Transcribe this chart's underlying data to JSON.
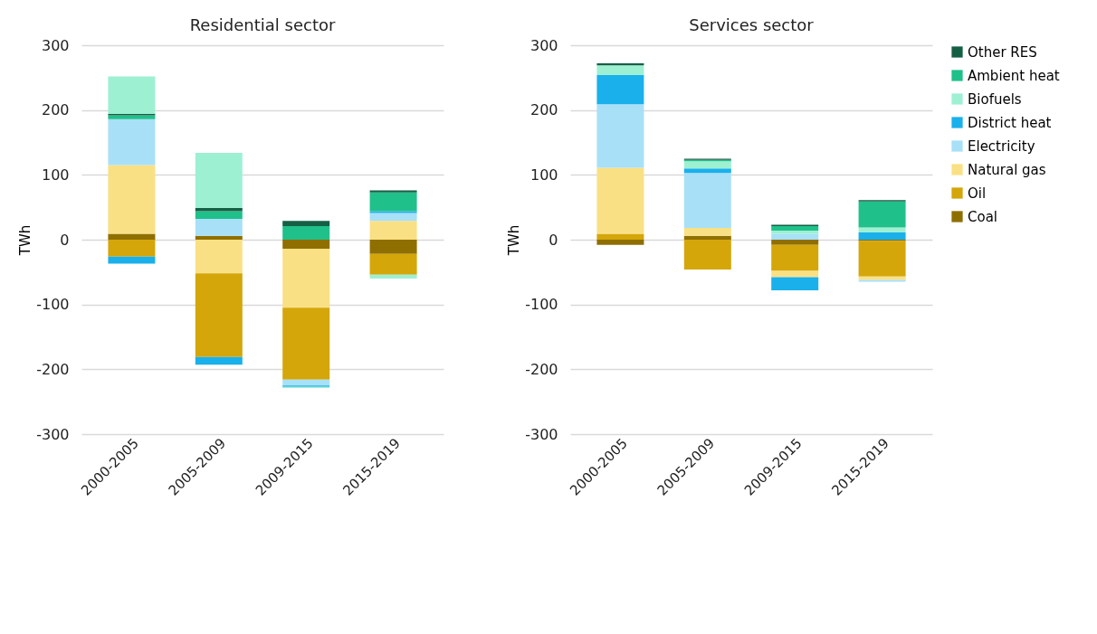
{
  "chart_data": [
    {
      "type": "bar",
      "title": "Residential sector",
      "ylabel": "TWh",
      "stacked": true,
      "categories": [
        "2000-2005",
        "2005-2009",
        "2009-2015",
        "2015-2019"
      ],
      "ylim": [
        -300,
        300
      ],
      "yticks": [
        -300,
        -200,
        -100,
        0,
        100,
        200,
        300
      ],
      "grid": "y",
      "legend": false,
      "series": [
        {
          "color": "#8f6f00",
          "values": [
            9,
            6,
            -14,
            -22
          ]
        },
        {
          "color": "#fae084",
          "values": [
            106,
            -52,
            -91,
            29
          ]
        },
        {
          "color": "#d4a60a",
          "values": [
            -26,
            -129,
            -111,
            -32
          ]
        },
        {
          "color": "#a8e0f8",
          "values": [
            71,
            26,
            -9,
            12
          ]
        },
        {
          "color": "#1ab0eb",
          "values": [
            -11,
            -12,
            -2,
            3
          ]
        },
        {
          "color": "#20c08a",
          "values": [
            6,
            12,
            21,
            29
          ]
        },
        {
          "color": "#155f45",
          "values": [
            2,
            5,
            8,
            3
          ]
        },
        {
          "color": "#9ef0d3",
          "values": [
            58,
            85,
            -2,
            -6
          ]
        }
      ]
    },
    {
      "type": "bar",
      "title": "Services sector",
      "ylabel": "TWh",
      "stacked": true,
      "categories": [
        "2000-2005",
        "2005-2009",
        "2009-2015",
        "2015-2019"
      ],
      "ylim": [
        -300,
        300
      ],
      "yticks": [
        -300,
        -200,
        -100,
        0,
        100,
        200,
        300
      ],
      "grid": "y",
      "legend": "right",
      "series": [
        {
          "name": "Coal",
          "color": "#8f6f00",
          "values": [
            -8,
            6,
            -8,
            -2
          ]
        },
        {
          "name": "Oil",
          "color": "#d4a60a",
          "values": [
            9,
            -46,
            -40,
            -55
          ]
        },
        {
          "name": "Natural gas",
          "color": "#fae084",
          "values": [
            102,
            12,
            -10,
            -5
          ]
        },
        {
          "name": "Electricity",
          "color": "#a8e0f8",
          "values": [
            98,
            85,
            9,
            -3
          ]
        },
        {
          "name": "District heat",
          "color": "#1ab0eb",
          "values": [
            45,
            7,
            -20,
            11
          ]
        },
        {
          "name": "Biofuels",
          "color": "#9ef0d3",
          "values": [
            15,
            11,
            5,
            8
          ]
        },
        {
          "name": "Ambient heat",
          "color": "#20c08a",
          "values": [
            0,
            2,
            7,
            40
          ]
        },
        {
          "name": "Other RES",
          "color": "#155f45",
          "values": [
            3,
            2,
            2,
            2
          ]
        }
      ]
    }
  ]
}
